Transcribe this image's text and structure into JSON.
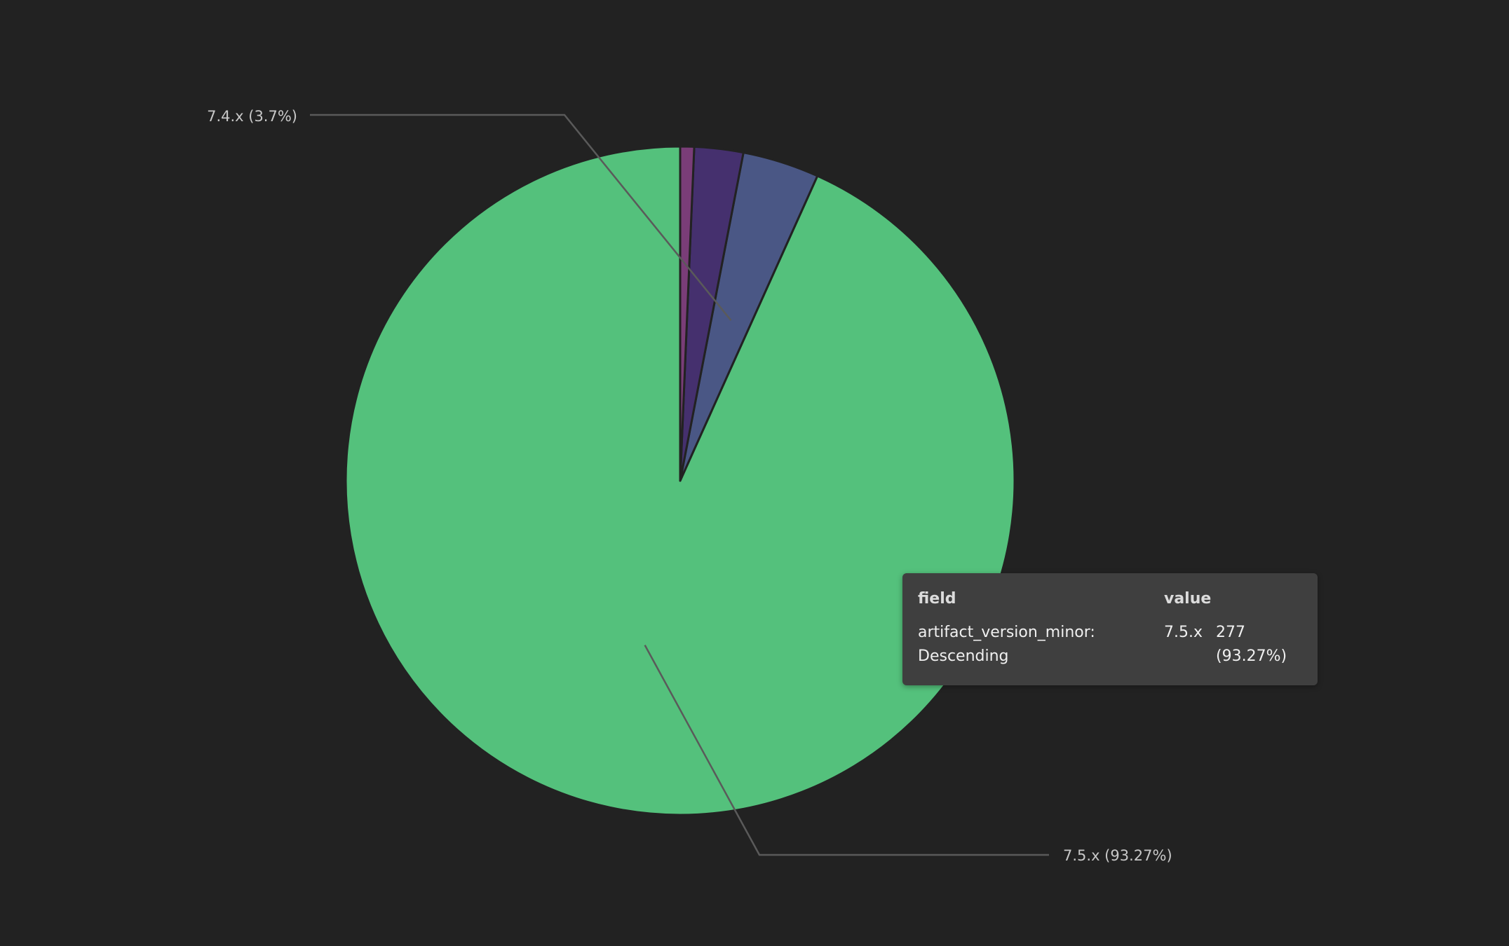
{
  "chart_data": {
    "type": "pie",
    "start_angle_deg": 0,
    "direction": "counterclockwise",
    "slices": [
      {
        "label": "7.5.x",
        "percent": 93.27,
        "color": "#54c17c",
        "label_text": "7.5.x (93.27%)"
      },
      {
        "label": "7.4.x",
        "percent": 3.7,
        "color": "#4a5785",
        "label_text": "7.4.x (3.7%)"
      },
      {
        "label": "",
        "percent": 2.36,
        "color": "#45306e",
        "label_text": ""
      },
      {
        "label": "",
        "percent": 0.67,
        "color": "#7a3d78",
        "label_text": ""
      }
    ]
  },
  "tooltip": {
    "header_field": "field",
    "header_value": "value",
    "field_line1": "artifact_version_minor:",
    "field_line2": "Descending",
    "value": "7.5.x",
    "count_line1": "277",
    "count_line2": "(93.27%)"
  },
  "colors": {
    "background": "#222222",
    "leader_line": "#5a5a5a",
    "slice_border": "#222222"
  }
}
